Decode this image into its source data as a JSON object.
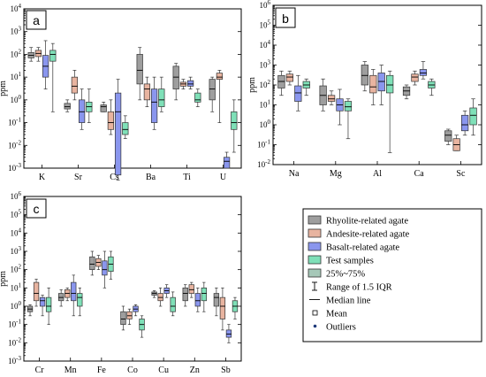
{
  "figure": {
    "y_unit": "ppm",
    "colors": {
      "rhyolite": "#9e9e9e",
      "andesite": "#e8b4a0",
      "basalt": "#8a96ee",
      "test": "#7fe0b8",
      "outliers": "#1f3a7a"
    }
  },
  "legend": {
    "items": [
      {
        "label": "Rhyolite-related agate",
        "color": "#9e9e9e"
      },
      {
        "label": "Andesite-related agate",
        "color": "#e8b4a0"
      },
      {
        "label": "Basalt-related agate",
        "color": "#8a96ee"
      },
      {
        "label": "Test samples",
        "color": "#7fe0b8"
      },
      {
        "label": "25%~75%",
        "color": "#a6c8b8"
      }
    ],
    "range_label": "Range of 1.5 IQR",
    "median_label": "Median line",
    "mean_label": "Mean",
    "outliers_label": "Outliers"
  },
  "chart_data": [
    {
      "panel": "a",
      "type": "box",
      "ylabel": "ppm",
      "yscale": "log",
      "ylim_exp": [
        -3,
        4
      ],
      "series_order": [
        "rhyolite",
        "andesite",
        "basalt",
        "test"
      ],
      "categories": [
        {
          "name": "K",
          "boxes": [
            {
              "series": "rhyolite",
              "min": 50,
              "q1": 70,
              "median": 90,
              "q3": 120,
              "max": 200
            },
            {
              "series": "andesite",
              "min": 50,
              "q1": 80,
              "median": 110,
              "q3": 150,
              "max": 200
            },
            {
              "series": "basalt",
              "min": 3,
              "q1": 10,
              "median": 30,
              "q3": 90,
              "max": 400
            },
            {
              "series": "test",
              "min": 0.3,
              "q1": 50,
              "median": 100,
              "q3": 150,
              "max": 300
            }
          ]
        },
        {
          "name": "Sr",
          "boxes": [
            {
              "series": "rhyolite",
              "min": 0.3,
              "q1": 0.4,
              "median": 0.5,
              "q3": 0.7,
              "max": 1
            },
            {
              "series": "andesite",
              "min": 1,
              "q1": 2,
              "median": 4,
              "q3": 10,
              "max": 20
            },
            {
              "series": "basalt",
              "min": 0.05,
              "q1": 0.1,
              "median": 0.3,
              "q3": 1,
              "max": 3
            },
            {
              "series": "test",
              "min": 0.1,
              "q1": 0.3,
              "median": 0.5,
              "q3": 0.8,
              "max": 3
            }
          ]
        },
        {
          "name": "Cs",
          "boxes": [
            {
              "series": "rhyolite",
              "min": 0.3,
              "q1": 0.3,
              "median": 0.5,
              "q3": 0.6,
              "max": 0.8
            },
            {
              "series": "andesite",
              "min": 0.03,
              "q1": 0.05,
              "median": 0.1,
              "q3": 0.3,
              "max": 1
            },
            {
              "series": "basalt",
              "min": 0.0003,
              "q1": 0.0005,
              "median": 0.3,
              "q3": 2,
              "max": 8
            },
            {
              "series": "test",
              "min": 0.02,
              "q1": 0.03,
              "median": 0.05,
              "q3": 0.1,
              "max": 0.2
            }
          ]
        },
        {
          "name": "Ba",
          "boxes": [
            {
              "series": "rhyolite",
              "min": 1,
              "q1": 5,
              "median": 20,
              "q3": 100,
              "max": 200
            },
            {
              "series": "andesite",
              "min": 0.5,
              "q1": 1,
              "median": 3,
              "q3": 5,
              "max": 10
            },
            {
              "series": "basalt",
              "min": 0.05,
              "q1": 0.1,
              "median": 0.8,
              "q3": 3,
              "max": 10
            },
            {
              "series": "test",
              "min": 0.3,
              "q1": 0.5,
              "median": 1,
              "q3": 3,
              "max": 10
            }
          ]
        },
        {
          "name": "Ti",
          "boxes": [
            {
              "series": "rhyolite",
              "min": 1,
              "q1": 3,
              "median": 10,
              "q3": 30,
              "max": 40
            },
            {
              "series": "andesite",
              "min": 3,
              "q1": 4,
              "median": 5,
              "q3": 6,
              "max": 8
            },
            {
              "series": "basalt",
              "min": 3,
              "q1": 4,
              "median": 5,
              "q3": 7,
              "max": 10
            },
            {
              "series": "test",
              "min": 0.5,
              "q1": 0.8,
              "median": 1,
              "q3": 2,
              "max": 3
            }
          ]
        },
        {
          "name": "U",
          "boxes": [
            {
              "series": "rhyolite",
              "min": 0.3,
              "q1": 1,
              "median": 3,
              "q3": 8,
              "max": 10
            },
            {
              "series": "andesite",
              "min": 0.1,
              "q1": 8,
              "median": 10,
              "q3": 15,
              "max": 20
            },
            {
              "series": "basalt",
              "min": 0.001,
              "q1": 0.001,
              "median": 0.002,
              "q3": 0.003,
              "max": 0.005
            },
            {
              "series": "test",
              "min": 0.005,
              "q1": 0.05,
              "median": 0.1,
              "q3": 0.3,
              "max": 1
            }
          ]
        }
      ]
    },
    {
      "panel": "b",
      "type": "box",
      "ylabel": "ppm",
      "yscale": "log",
      "ylim_exp": [
        -2,
        6
      ],
      "series_order": [
        "rhyolite",
        "andesite",
        "basalt",
        "test"
      ],
      "categories": [
        {
          "name": "Na",
          "boxes": [
            {
              "series": "rhyolite",
              "min": 30,
              "q1": 70,
              "median": 150,
              "q3": 300,
              "max": 500
            },
            {
              "series": "andesite",
              "min": 100,
              "q1": 150,
              "median": 250,
              "q3": 350,
              "max": 500
            },
            {
              "series": "basalt",
              "min": 5,
              "q1": 15,
              "median": 40,
              "q3": 90,
              "max": 300
            },
            {
              "series": "test",
              "min": 30,
              "q1": 70,
              "median": 100,
              "q3": 150,
              "max": 200
            }
          ]
        },
        {
          "name": "Mg",
          "boxes": [
            {
              "series": "rhyolite",
              "min": 5,
              "q1": 10,
              "median": 30,
              "q3": 90,
              "max": 200
            },
            {
              "series": "andesite",
              "min": 10,
              "q1": 15,
              "median": 20,
              "q3": 30,
              "max": 50
            },
            {
              "series": "basalt",
              "min": 1,
              "q1": 5,
              "median": 10,
              "q3": 20,
              "max": 60
            },
            {
              "series": "test",
              "min": 0.2,
              "q1": 5,
              "median": 8,
              "q3": 15,
              "max": 20
            }
          ]
        },
        {
          "name": "Al",
          "boxes": [
            {
              "series": "rhyolite",
              "min": 50,
              "q1": 100,
              "median": 300,
              "q3": 1000,
              "max": 1500
            },
            {
              "series": "andesite",
              "min": 10,
              "q1": 40,
              "median": 80,
              "q3": 300,
              "max": 600
            },
            {
              "series": "basalt",
              "min": 10,
              "q1": 50,
              "median": 150,
              "q3": 400,
              "max": 1000
            },
            {
              "series": "test",
              "min": 0.04,
              "q1": 40,
              "median": 100,
              "q3": 300,
              "max": 500
            }
          ]
        },
        {
          "name": "Ca",
          "boxes": [
            {
              "series": "rhyolite",
              "min": 20,
              "q1": 30,
              "median": 50,
              "q3": 80,
              "max": 100
            },
            {
              "series": "andesite",
              "min": 100,
              "q1": 150,
              "median": 250,
              "q3": 350,
              "max": 500
            },
            {
              "series": "basalt",
              "min": 200,
              "q1": 300,
              "median": 400,
              "q3": 600,
              "max": 1500
            },
            {
              "series": "test",
              "min": 30,
              "q1": 70,
              "median": 100,
              "q3": 150,
              "max": 200
            }
          ]
        },
        {
          "name": "Sc",
          "boxes": [
            {
              "series": "rhyolite",
              "min": 0.1,
              "q1": 0.15,
              "median": 0.3,
              "q3": 0.5,
              "max": 0.6
            },
            {
              "series": "andesite",
              "min": 0.05,
              "q1": 0.05,
              "median": 0.1,
              "q3": 0.2,
              "max": 0.3
            },
            {
              "series": "basalt",
              "min": 0.3,
              "q1": 0.5,
              "median": 1,
              "q3": 3,
              "max": 5
            },
            {
              "series": "test",
              "min": 0.3,
              "q1": 1,
              "median": 3,
              "q3": 7,
              "max": 20
            }
          ]
        }
      ]
    },
    {
      "panel": "c",
      "type": "box",
      "ylabel": "ppm",
      "yscale": "log",
      "ylim_exp": [
        -3,
        6
      ],
      "series_order": [
        "rhyolite",
        "andesite",
        "basalt",
        "test"
      ],
      "categories": [
        {
          "name": "Cr",
          "boxes": [
            {
              "series": "rhyolite",
              "min": 0.3,
              "q1": 0.5,
              "median": 0.7,
              "q3": 1,
              "max": 1.2
            },
            {
              "series": "andesite",
              "min": 1,
              "q1": 2,
              "median": 5,
              "q3": 20,
              "max": 30
            },
            {
              "series": "basalt",
              "min": 0.3,
              "q1": 1,
              "median": 2,
              "q3": 3,
              "max": 4
            },
            {
              "series": "test",
              "min": 0.1,
              "q1": 0.5,
              "median": 1,
              "q3": 3,
              "max": 10
            }
          ]
        },
        {
          "name": "Mn",
          "boxes": [
            {
              "series": "rhyolite",
              "min": 1,
              "q1": 2,
              "median": 3,
              "q3": 5,
              "max": 8
            },
            {
              "series": "andesite",
              "min": 2,
              "q1": 3,
              "median": 5,
              "q3": 8,
              "max": 10
            },
            {
              "series": "basalt",
              "min": 0.3,
              "q1": 2,
              "median": 5,
              "q3": 20,
              "max": 50
            },
            {
              "series": "test",
              "min": 0.3,
              "q1": 1,
              "median": 3,
              "q3": 5,
              "max": 10
            }
          ]
        },
        {
          "name": "Fe",
          "boxes": [
            {
              "series": "rhyolite",
              "min": 50,
              "q1": 100,
              "median": 200,
              "q3": 500,
              "max": 1000
            },
            {
              "series": "andesite",
              "min": 100,
              "q1": 150,
              "median": 250,
              "q3": 400,
              "max": 600
            },
            {
              "series": "basalt",
              "min": 10,
              "q1": 50,
              "median": 100,
              "q3": 300,
              "max": 1000
            },
            {
              "series": "test",
              "min": 30,
              "q1": 80,
              "median": 200,
              "q3": 500,
              "max": 1000
            }
          ]
        },
        {
          "name": "Co",
          "boxes": [
            {
              "series": "rhyolite",
              "min": 0.05,
              "q1": 0.1,
              "median": 0.2,
              "q3": 0.5,
              "max": 1
            },
            {
              "series": "andesite",
              "min": 0.1,
              "q1": 0.2,
              "median": 0.3,
              "q3": 0.5,
              "max": 0.7
            },
            {
              "series": "basalt",
              "min": 0.3,
              "q1": 0.5,
              "median": 0.7,
              "q3": 1,
              "max": 1.2
            },
            {
              "series": "test",
              "min": 0.02,
              "q1": 0.05,
              "median": 0.1,
              "q3": 0.2,
              "max": 0.3
            }
          ]
        },
        {
          "name": "Cu",
          "boxes": [
            {
              "series": "rhyolite",
              "min": 3,
              "q1": 4,
              "median": 5,
              "q3": 6,
              "max": 7
            },
            {
              "series": "andesite",
              "min": 1,
              "q1": 2,
              "median": 3,
              "q3": 5,
              "max": 10
            },
            {
              "series": "basalt",
              "min": 3,
              "q1": 5,
              "median": 7,
              "q3": 10,
              "max": 15
            },
            {
              "series": "test",
              "min": 0.3,
              "q1": 0.5,
              "median": 1,
              "q3": 3,
              "max": 6
            }
          ]
        },
        {
          "name": "Zn",
          "boxes": [
            {
              "series": "rhyolite",
              "min": 1,
              "q1": 2,
              "median": 5,
              "q3": 10,
              "max": 15
            },
            {
              "series": "andesite",
              "min": 3,
              "q1": 5,
              "median": 8,
              "q3": 15,
              "max": 20
            },
            {
              "series": "basalt",
              "min": 0.5,
              "q1": 1,
              "median": 2,
              "q3": 5,
              "max": 10
            },
            {
              "series": "test",
              "min": 0.5,
              "q1": 2,
              "median": 5,
              "q3": 10,
              "max": 20
            }
          ]
        },
        {
          "name": "Sb",
          "boxes": [
            {
              "series": "rhyolite",
              "min": 0.3,
              "q1": 1,
              "median": 3,
              "q3": 5,
              "max": 10
            },
            {
              "series": "andesite",
              "min": 0.05,
              "q1": 0.2,
              "median": 1,
              "q3": 3,
              "max": 10
            },
            {
              "series": "basalt",
              "min": 0.01,
              "q1": 0.02,
              "median": 0.03,
              "q3": 0.05,
              "max": 0.1
            },
            {
              "series": "test",
              "min": 0.2,
              "q1": 0.5,
              "median": 1,
              "q3": 2,
              "max": 3
            }
          ]
        }
      ]
    }
  ]
}
